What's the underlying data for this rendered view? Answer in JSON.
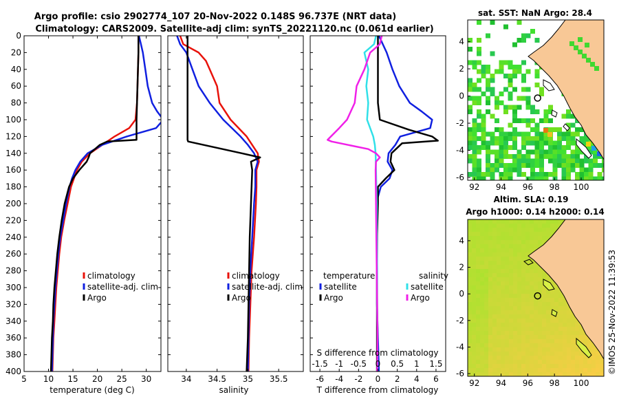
{
  "header": {
    "line1": "Argo profile: csio 2902774_107 20-Nov-2022 0.148S 96.737E (NRT data)",
    "line2": "Climatology: CARS2009. Satellite-adj clim: synTS_20221120.nc (0.061d earlier)"
  },
  "colors": {
    "climatology": "#e8120a",
    "satellite": "#1020e0",
    "argo": "#000000",
    "sat_salinity": "#30e0e8",
    "argo_salinity_diff": "#f020e8",
    "land": "#f8c896"
  },
  "chart_data": [
    {
      "type": "line",
      "id": "temperature",
      "xlabel": "temperature (deg C)",
      "ylabel": "depth",
      "xlim": [
        5,
        33
      ],
      "ylim": [
        400,
        0
      ],
      "xticks": [
        5,
        10,
        15,
        20,
        25,
        30
      ],
      "yticks": [
        0,
        20,
        40,
        60,
        80,
        100,
        120,
        140,
        160,
        180,
        200,
        220,
        240,
        260,
        280,
        300,
        320,
        340,
        360,
        380,
        400
      ],
      "legend": [
        "climatology",
        "satellite-adj. clim",
        "Argo"
      ],
      "series": [
        {
          "name": "climatology",
          "depth": [
            0,
            20,
            40,
            60,
            80,
            100,
            110,
            120,
            130,
            140,
            150,
            160,
            170,
            180,
            200,
            220,
            240,
            260,
            280,
            300,
            320,
            340,
            360,
            380,
            400
          ],
          "values": [
            28.4,
            28.4,
            28.3,
            28.2,
            28.1,
            27.8,
            26.5,
            23.5,
            21,
            18.5,
            16.8,
            15.8,
            15.2,
            14.6,
            13.9,
            13.2,
            12.6,
            12.2,
            11.9,
            11.6,
            11.4,
            11.2,
            11.0,
            10.9,
            10.8
          ]
        },
        {
          "name": "satellite-adj. clim",
          "depth": [
            0,
            10,
            20,
            40,
            60,
            80,
            90,
            100,
            110,
            120,
            130,
            140,
            150,
            160,
            170,
            180,
            200,
            220,
            240,
            260,
            280,
            300,
            320,
            340,
            360,
            380,
            400
          ],
          "values": [
            28.5,
            28.9,
            29.3,
            29.8,
            30.3,
            31.2,
            32.2,
            33.5,
            32.0,
            26.0,
            21.0,
            18.0,
            16.5,
            15.5,
            14.8,
            14.3,
            13.6,
            13.0,
            12.4,
            12.0,
            11.7,
            11.4,
            11.2,
            11.0,
            10.9,
            10.8,
            10.7
          ]
        },
        {
          "name": "Argo",
          "depth": [
            0,
            20,
            40,
            60,
            80,
            100,
            124,
            126,
            130,
            140,
            145,
            150,
            160,
            170,
            180,
            200,
            220,
            240,
            260,
            280,
            300,
            320,
            340,
            360,
            380,
            400
          ],
          "values": [
            28.4,
            28.4,
            28.3,
            28.2,
            28.1,
            28.0,
            28.0,
            22.0,
            20.5,
            18.5,
            18.2,
            17.8,
            16.3,
            15.0,
            14.2,
            13.3,
            12.7,
            12.2,
            11.8,
            11.5,
            11.2,
            11.0,
            10.9,
            10.7,
            10.6,
            10.5
          ]
        }
      ]
    },
    {
      "type": "line",
      "id": "salinity",
      "xlabel": "salinity",
      "xlim": [
        33.7,
        35.9
      ],
      "ylim": [
        400,
        0
      ],
      "xticks": [
        34,
        34.5,
        35,
        35.5
      ],
      "legend": [
        "climatology",
        "satellite-adj. clim",
        "Argo"
      ],
      "series": [
        {
          "name": "climatology",
          "depth": [
            0,
            10,
            20,
            30,
            40,
            60,
            70,
            80,
            100,
            120,
            140,
            150,
            160,
            180,
            200,
            240,
            280,
            320,
            360,
            400
          ],
          "values": [
            33.9,
            33.95,
            34.2,
            34.32,
            34.38,
            34.5,
            34.52,
            34.54,
            34.72,
            34.98,
            35.16,
            35.18,
            35.14,
            35.14,
            35.13,
            35.1,
            35.06,
            35.04,
            35.02,
            35.01
          ]
        },
        {
          "name": "satellite-adj. clim",
          "depth": [
            0,
            10,
            20,
            40,
            60,
            80,
            100,
            120,
            130,
            140,
            150,
            160,
            180,
            200,
            240,
            280,
            320,
            360,
            400
          ],
          "values": [
            33.85,
            33.9,
            34.0,
            34.1,
            34.2,
            34.38,
            34.6,
            34.88,
            35.0,
            35.1,
            35.16,
            35.12,
            35.12,
            35.1,
            35.07,
            35.04,
            35.02,
            35.01,
            35.0
          ]
        },
        {
          "name": "Argo",
          "depth": [
            0,
            40,
            80,
            100,
            124,
            126,
            140,
            145,
            150,
            160,
            200,
            240,
            280,
            320,
            360,
            400
          ],
          "values": [
            34.02,
            34.02,
            34.02,
            34.02,
            34.02,
            34.03,
            34.9,
            35.2,
            35.05,
            35.07,
            35.05,
            35.03,
            35.02,
            35.01,
            35.0,
            34.98
          ]
        }
      ]
    },
    {
      "type": "line",
      "id": "differences",
      "xlabel": "T difference from climatology",
      "top_axis_label": "S difference from climatology",
      "xlim": [
        -7,
        7
      ],
      "ylim": [
        400,
        0
      ],
      "xticks": [
        -6,
        -4,
        -2,
        0,
        2,
        4,
        6
      ],
      "top_ticks": [
        "-1.5",
        "-1",
        "-0.5",
        "0",
        "0.5",
        "1",
        "1.5"
      ],
      "legend_title_left": "temperature",
      "legend_title_right": "salinity",
      "legend": [
        "satellite",
        "Argo",
        "satellite",
        "Argo"
      ],
      "series": [
        {
          "name": "temperature satellite",
          "depth": [
            0,
            20,
            40,
            60,
            80,
            90,
            100,
            110,
            120,
            130,
            140,
            150,
            160,
            170,
            180,
            200,
            240,
            280,
            320,
            360,
            400
          ],
          "values": [
            0.1,
            0.9,
            1.5,
            2.2,
            3.3,
            4.5,
            5.6,
            5.4,
            2.3,
            1.8,
            1.1,
            1.0,
            1.5,
            1.2,
            0.3,
            -0.2,
            -0.1,
            -0.1,
            -0.1,
            0.0,
            0.1
          ]
        },
        {
          "name": "temperature Argo",
          "depth": [
            0,
            40,
            80,
            100,
            112,
            120,
            125,
            128,
            140,
            150,
            160,
            170,
            180,
            200,
            240,
            280,
            320,
            360,
            400
          ],
          "values": [
            0.0,
            0.0,
            0.0,
            0.2,
            3.2,
            5.6,
            6.2,
            2.5,
            1.4,
            1.3,
            1.7,
            0.8,
            0.0,
            0.0,
            -0.1,
            -0.1,
            -0.1,
            -0.1,
            -0.1
          ]
        },
        {
          "name": "salinity satellite",
          "depth": [
            0,
            10,
            20,
            40,
            60,
            80,
            100,
            120,
            130,
            140,
            160,
            200,
            240,
            280,
            320,
            360,
            400
          ],
          "values": [
            -0.05,
            -0.1,
            -0.35,
            -0.25,
            -0.3,
            -0.25,
            -0.28,
            -0.12,
            -0.08,
            -0.06,
            -0.05,
            -0.03,
            -0.03,
            -0.02,
            -0.02,
            -0.01,
            -0.01
          ]
        },
        {
          "name": "salinity Argo",
          "depth": [
            0,
            10,
            20,
            40,
            60,
            80,
            100,
            110,
            124,
            126,
            135,
            140,
            145,
            150,
            160,
            200,
            240,
            280,
            320,
            360,
            400
          ],
          "values": [
            0.1,
            0.05,
            -0.2,
            -0.35,
            -0.55,
            -0.6,
            -0.8,
            -1.0,
            -1.3,
            -1.2,
            -0.25,
            -0.05,
            0.05,
            -0.05,
            -0.06,
            -0.05,
            -0.04,
            -0.03,
            -0.02,
            -0.01,
            -0.02
          ]
        }
      ]
    },
    {
      "type": "heatmap",
      "id": "sst_map",
      "title": "sat. SST: NaN Argo: 28.4",
      "xlim": [
        91.5,
        101.7
      ],
      "ylim": [
        -6.2,
        5.6
      ],
      "xticks": [
        92,
        94,
        96,
        98,
        100
      ],
      "yticks": [
        -6,
        -4,
        -2,
        0,
        2,
        4
      ],
      "argo_lon": 96.737,
      "argo_lat": -0.148
    },
    {
      "type": "heatmap",
      "id": "sla_map",
      "title_line1": "Altim. SLA: 0.19",
      "title_line2": "Argo h1000: 0.14 h2000: 0.14",
      "xlim": [
        91.5,
        101.7
      ],
      "ylim": [
        -6.2,
        5.6
      ],
      "xticks": [
        92,
        94,
        96,
        98,
        100
      ],
      "yticks": [
        -6,
        -4,
        -2,
        0,
        2,
        4
      ],
      "argo_lon": 96.737,
      "argo_lat": -0.148
    }
  ],
  "watermark": "©IMOS 25-Nov-2022 11:39:53"
}
